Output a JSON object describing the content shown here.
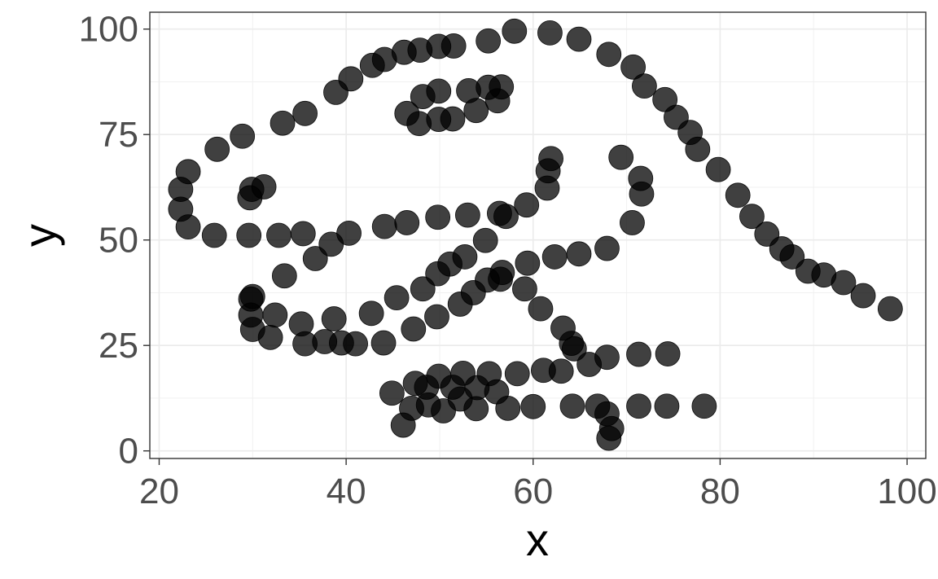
{
  "chart_data": {
    "type": "scatter",
    "title": "",
    "xlabel": "x",
    "ylabel": "y",
    "xlim": [
      19.0,
      102.0
    ],
    "ylim": [
      -1.8,
      104.0
    ],
    "xticks": [
      20,
      40,
      60,
      80,
      100
    ],
    "yticks": [
      0,
      25,
      50,
      75,
      100
    ],
    "grid": true,
    "point_color": "#000000",
    "point_opacity": 0.75,
    "points": [
      {
        "x": 22.3,
        "y": 62.0
      },
      {
        "x": 22.3,
        "y": 57.3
      },
      {
        "x": 23.1,
        "y": 53.1
      },
      {
        "x": 23.1,
        "y": 66.2
      },
      {
        "x": 25.9,
        "y": 51.1
      },
      {
        "x": 26.2,
        "y": 71.5
      },
      {
        "x": 28.9,
        "y": 74.6
      },
      {
        "x": 29.6,
        "y": 51.1
      },
      {
        "x": 29.7,
        "y": 60.0
      },
      {
        "x": 29.9,
        "y": 62.0
      },
      {
        "x": 31.2,
        "y": 62.6
      },
      {
        "x": 33.2,
        "y": 77.7
      },
      {
        "x": 32.8,
        "y": 51.1
      },
      {
        "x": 35.6,
        "y": 80.0
      },
      {
        "x": 35.4,
        "y": 51.5
      },
      {
        "x": 33.4,
        "y": 41.5
      },
      {
        "x": 36.7,
        "y": 45.6
      },
      {
        "x": 38.4,
        "y": 49.0
      },
      {
        "x": 38.9,
        "y": 85.0
      },
      {
        "x": 40.5,
        "y": 88.2
      },
      {
        "x": 40.3,
        "y": 51.6
      },
      {
        "x": 42.8,
        "y": 91.4
      },
      {
        "x": 44.1,
        "y": 92.8
      },
      {
        "x": 46.2,
        "y": 94.5
      },
      {
        "x": 47.9,
        "y": 95.0
      },
      {
        "x": 49.9,
        "y": 95.9
      },
      {
        "x": 51.5,
        "y": 96.0
      },
      {
        "x": 55.2,
        "y": 97.2
      },
      {
        "x": 58.0,
        "y": 99.5
      },
      {
        "x": 61.8,
        "y": 99.1
      },
      {
        "x": 64.9,
        "y": 97.6
      },
      {
        "x": 68.1,
        "y": 94.0
      },
      {
        "x": 70.7,
        "y": 91.0
      },
      {
        "x": 71.9,
        "y": 86.5
      },
      {
        "x": 74.1,
        "y": 83.3
      },
      {
        "x": 75.3,
        "y": 79.1
      },
      {
        "x": 76.8,
        "y": 75.5
      },
      {
        "x": 77.6,
        "y": 71.5
      },
      {
        "x": 79.8,
        "y": 66.7
      },
      {
        "x": 81.9,
        "y": 60.6
      },
      {
        "x": 83.4,
        "y": 55.6
      },
      {
        "x": 85.0,
        "y": 51.4
      },
      {
        "x": 86.6,
        "y": 47.9
      },
      {
        "x": 87.7,
        "y": 46.0
      },
      {
        "x": 89.4,
        "y": 42.6
      },
      {
        "x": 91.1,
        "y": 41.7
      },
      {
        "x": 93.2,
        "y": 39.9
      },
      {
        "x": 95.3,
        "y": 36.8
      },
      {
        "x": 98.2,
        "y": 33.7
      },
      {
        "x": 46.5,
        "y": 80.0
      },
      {
        "x": 47.8,
        "y": 77.6
      },
      {
        "x": 48.2,
        "y": 84.0
      },
      {
        "x": 49.9,
        "y": 78.6
      },
      {
        "x": 49.9,
        "y": 85.3
      },
      {
        "x": 51.4,
        "y": 78.7
      },
      {
        "x": 53.1,
        "y": 85.4
      },
      {
        "x": 53.9,
        "y": 80.7
      },
      {
        "x": 55.2,
        "y": 86.2
      },
      {
        "x": 56.2,
        "y": 83.0
      },
      {
        "x": 56.6,
        "y": 86.3
      },
      {
        "x": 44.1,
        "y": 53.2
      },
      {
        "x": 46.5,
        "y": 54.1
      },
      {
        "x": 49.8,
        "y": 55.4
      },
      {
        "x": 53.0,
        "y": 55.9
      },
      {
        "x": 56.4,
        "y": 56.3
      },
      {
        "x": 57.1,
        "y": 55.6
      },
      {
        "x": 59.3,
        "y": 58.3
      },
      {
        "x": 61.5,
        "y": 62.3
      },
      {
        "x": 61.6,
        "y": 66.4
      },
      {
        "x": 61.9,
        "y": 69.3
      },
      {
        "x": 69.4,
        "y": 69.6
      },
      {
        "x": 71.5,
        "y": 64.6
      },
      {
        "x": 71.6,
        "y": 60.9
      },
      {
        "x": 70.6,
        "y": 54.1
      },
      {
        "x": 67.9,
        "y": 48.0
      },
      {
        "x": 64.9,
        "y": 46.7
      },
      {
        "x": 62.3,
        "y": 46.0
      },
      {
        "x": 59.4,
        "y": 44.5
      },
      {
        "x": 56.7,
        "y": 42.3
      },
      {
        "x": 56.5,
        "y": 40.7
      },
      {
        "x": 55.1,
        "y": 40.5
      },
      {
        "x": 53.6,
        "y": 37.5
      },
      {
        "x": 52.2,
        "y": 34.8
      },
      {
        "x": 49.7,
        "y": 31.8
      },
      {
        "x": 47.2,
        "y": 28.9
      },
      {
        "x": 44.0,
        "y": 25.6
      },
      {
        "x": 41.0,
        "y": 25.4
      },
      {
        "x": 39.5,
        "y": 25.6
      },
      {
        "x": 37.7,
        "y": 25.9
      },
      {
        "x": 35.6,
        "y": 25.4
      },
      {
        "x": 31.9,
        "y": 26.9
      },
      {
        "x": 30.0,
        "y": 28.8
      },
      {
        "x": 29.8,
        "y": 32.2
      },
      {
        "x": 29.8,
        "y": 36.0
      },
      {
        "x": 30.0,
        "y": 36.6
      },
      {
        "x": 32.4,
        "y": 32.2
      },
      {
        "x": 35.2,
        "y": 30.1
      },
      {
        "x": 38.7,
        "y": 31.3
      },
      {
        "x": 42.7,
        "y": 32.6
      },
      {
        "x": 45.4,
        "y": 36.3
      },
      {
        "x": 48.2,
        "y": 38.4
      },
      {
        "x": 49.8,
        "y": 42.0
      },
      {
        "x": 51.1,
        "y": 44.3
      },
      {
        "x": 52.7,
        "y": 46.0
      },
      {
        "x": 54.9,
        "y": 49.9
      },
      {
        "x": 59.1,
        "y": 38.4
      },
      {
        "x": 60.8,
        "y": 33.7
      },
      {
        "x": 63.2,
        "y": 29.1
      },
      {
        "x": 64.1,
        "y": 25.5
      },
      {
        "x": 64.4,
        "y": 24.2
      },
      {
        "x": 66.0,
        "y": 20.5
      },
      {
        "x": 67.9,
        "y": 22.2
      },
      {
        "x": 71.3,
        "y": 22.9
      },
      {
        "x": 74.4,
        "y": 23.0
      },
      {
        "x": 63.0,
        "y": 18.9
      },
      {
        "x": 61.1,
        "y": 19.1
      },
      {
        "x": 58.3,
        "y": 18.3
      },
      {
        "x": 55.3,
        "y": 18.3
      },
      {
        "x": 52.5,
        "y": 18.4
      },
      {
        "x": 49.9,
        "y": 17.7
      },
      {
        "x": 47.4,
        "y": 16.0
      },
      {
        "x": 48.6,
        "y": 15.1
      },
      {
        "x": 51.4,
        "y": 15.1
      },
      {
        "x": 54.0,
        "y": 15.0
      },
      {
        "x": 56.1,
        "y": 14.0
      },
      {
        "x": 44.9,
        "y": 13.7
      },
      {
        "x": 52.2,
        "y": 12.3
      },
      {
        "x": 48.8,
        "y": 10.9
      },
      {
        "x": 47.0,
        "y": 10.1
      },
      {
        "x": 50.4,
        "y": 9.5
      },
      {
        "x": 53.9,
        "y": 10.0
      },
      {
        "x": 57.3,
        "y": 10.1
      },
      {
        "x": 60.0,
        "y": 10.5
      },
      {
        "x": 64.2,
        "y": 10.6
      },
      {
        "x": 66.9,
        "y": 10.6
      },
      {
        "x": 71.3,
        "y": 10.6
      },
      {
        "x": 74.3,
        "y": 10.6
      },
      {
        "x": 78.3,
        "y": 10.6
      },
      {
        "x": 67.9,
        "y": 8.8
      },
      {
        "x": 68.4,
        "y": 5.3
      },
      {
        "x": 68.1,
        "y": 3.0
      },
      {
        "x": 46.1,
        "y": 6.1
      }
    ]
  }
}
